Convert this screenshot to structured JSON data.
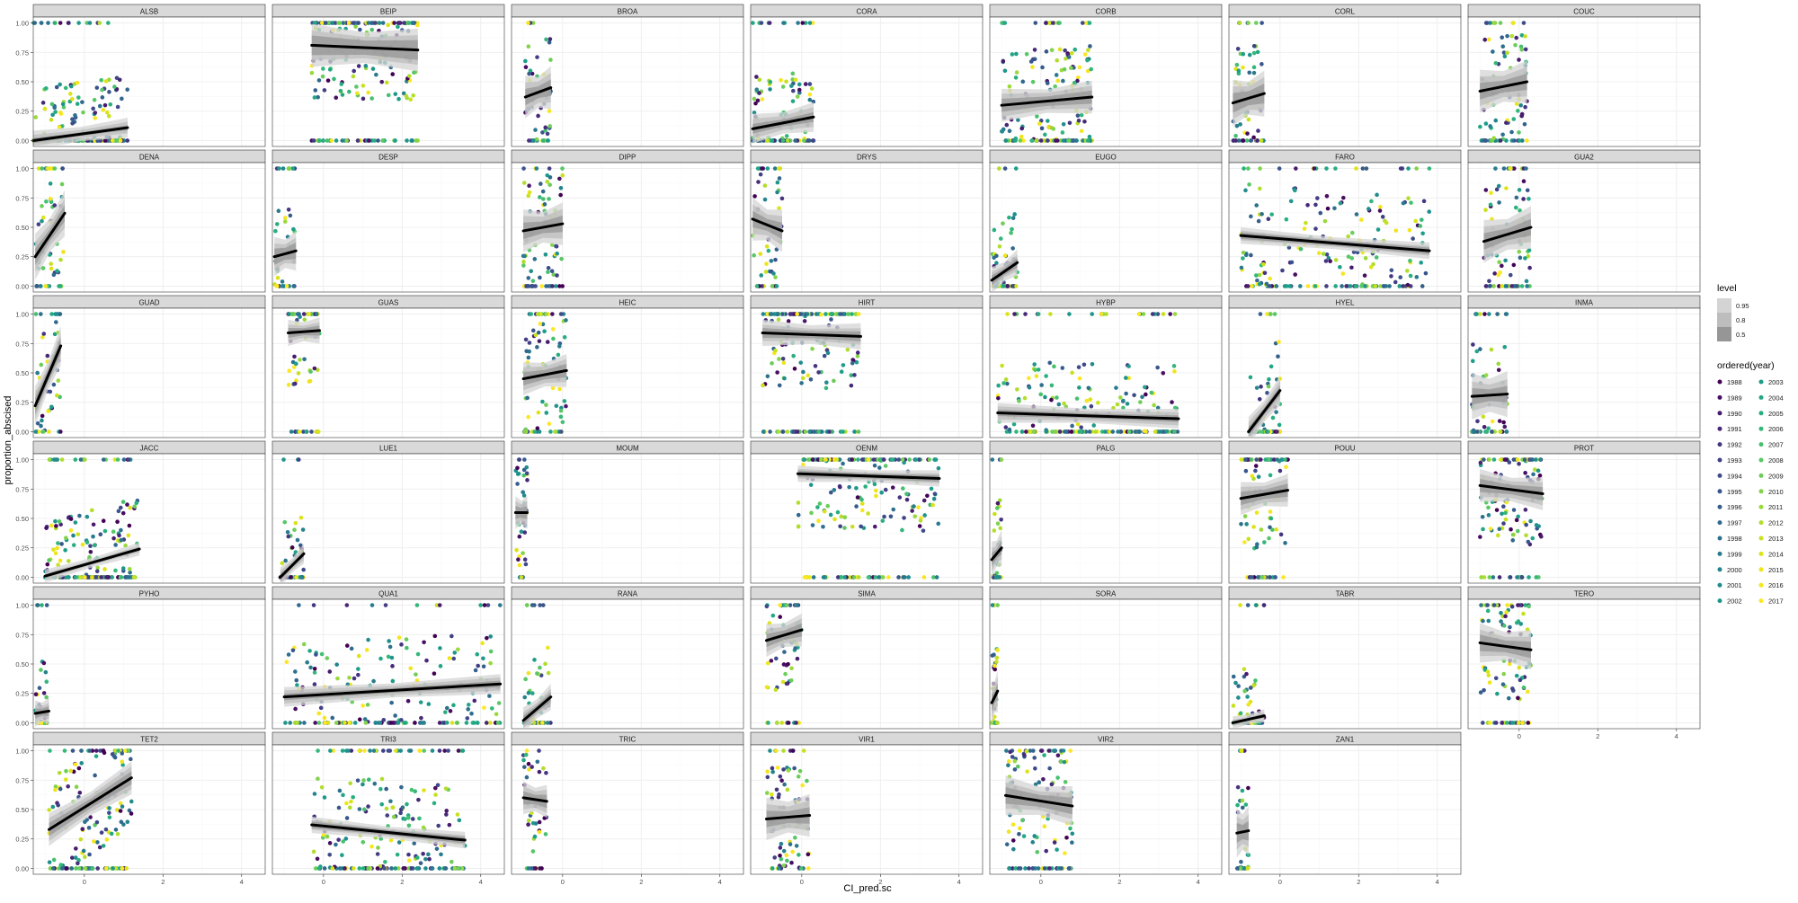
{
  "chart_data": {
    "type": "scatter",
    "facet_type": "facet_wrap",
    "xlabel": "CI_pred.sc",
    "ylabel": "proportion_abscised",
    "x_ticks": [
      0,
      2,
      4
    ],
    "y_ticks": [
      "0.00",
      "0.25",
      "0.50",
      "0.75",
      "1.00"
    ],
    "xlim": [
      -1.3,
      4.6
    ],
    "ylim": [
      -0.05,
      1.05
    ],
    "grid": true,
    "legend_position": "right",
    "colors": {
      "strip_bg": "#d9d9d9",
      "panel_border": "#333333",
      "grid_major": "#ebebeb",
      "grid_minor": "#f5f5f5",
      "fit_line": "#000000",
      "ribbon_95": "#d4d4d4",
      "ribbon_80": "#bdbdbd",
      "ribbon_50": "#969696"
    },
    "legend_level": {
      "title": "level",
      "entries": [
        "0.95",
        "0.8",
        "0.5"
      ],
      "colors": [
        "#d4d4d4",
        "#bdbdbd",
        "#969696"
      ]
    },
    "legend_year": {
      "title": "ordered(year)",
      "entries": [
        "1988",
        "1989",
        "1990",
        "1991",
        "1992",
        "1993",
        "1994",
        "1995",
        "1996",
        "1997",
        "1998",
        "1999",
        "2000",
        "2001",
        "2002",
        "2003",
        "2004",
        "2005",
        "2006",
        "2007",
        "2008",
        "2009",
        "2010",
        "2011",
        "2012",
        "2013",
        "2014",
        "2015",
        "2016",
        "2017"
      ],
      "colors": [
        "#440154",
        "#470E61",
        "#481B6D",
        "#472877",
        "#453581",
        "#423F85",
        "#3E4A89",
        "#39558C",
        "#355E8D",
        "#31688E",
        "#2D708E",
        "#297A8E",
        "#25838E",
        "#218C8D",
        "#1F958B",
        "#1E9D89",
        "#22A785",
        "#29AF7F",
        "#35B779",
        "#46C06F",
        "#58C765",
        "#6DCD59",
        "#83D34B",
        "#9AD93C",
        "#B2DD2D",
        "#C8E020",
        "#DDE318",
        "#EFE51C",
        "#F5E61F",
        "#FDE725"
      ]
    },
    "panels": [
      {
        "label": "ALSB",
        "x_range": [
          -1.3,
          1.1
        ],
        "fit": [
          0.0,
          0.11
        ],
        "band": [
          0.015,
          0.035,
          0.06
        ]
      },
      {
        "label": "BEIP",
        "x_range": [
          -0.3,
          2.4
        ],
        "fit": [
          0.81,
          0.77
        ],
        "band": [
          0.06,
          0.09,
          0.13
        ]
      },
      {
        "label": "BROA",
        "x_range": [
          -0.95,
          -0.3
        ],
        "fit": [
          0.37,
          0.45
        ],
        "band": [
          0.05,
          0.09,
          0.13
        ]
      },
      {
        "label": "CORA",
        "x_range": [
          -1.25,
          0.3
        ],
        "fit": [
          0.1,
          0.2
        ],
        "band": [
          0.03,
          0.06,
          0.09
        ]
      },
      {
        "label": "CORB",
        "x_range": [
          -1.0,
          1.3
        ],
        "fit": [
          0.3,
          0.37
        ],
        "band": [
          0.04,
          0.07,
          0.1
        ]
      },
      {
        "label": "CORL",
        "x_range": [
          -1.2,
          -0.4
        ],
        "fit": [
          0.32,
          0.4
        ],
        "band": [
          0.06,
          0.1,
          0.14
        ]
      },
      {
        "label": "COUC",
        "x_range": [
          -1.0,
          0.2
        ],
        "fit": [
          0.42,
          0.5
        ],
        "band": [
          0.05,
          0.09,
          0.13
        ]
      },
      {
        "label": "DENA",
        "x_range": [
          -1.25,
          -0.5
        ],
        "fit": [
          0.25,
          0.62
        ],
        "band": [
          0.05,
          0.09,
          0.14
        ]
      },
      {
        "label": "DESP",
        "x_range": [
          -1.25,
          -0.7
        ],
        "fit": [
          0.25,
          0.3
        ],
        "band": [
          0.05,
          0.08,
          0.12
        ]
      },
      {
        "label": "DIPP",
        "x_range": [
          -1.0,
          0.0
        ],
        "fit": [
          0.47,
          0.53
        ],
        "band": [
          0.05,
          0.09,
          0.13
        ]
      },
      {
        "label": "DRYS",
        "x_range": [
          -1.25,
          -0.5
        ],
        "fit": [
          0.57,
          0.47
        ],
        "band": [
          0.05,
          0.09,
          0.13
        ]
      },
      {
        "label": "EUGO",
        "x_range": [
          -1.25,
          -0.6
        ],
        "fit": [
          0.05,
          0.2
        ],
        "band": [
          0.03,
          0.05,
          0.08
        ]
      },
      {
        "label": "FARO",
        "x_range": [
          -1.0,
          3.8
        ],
        "fit": [
          0.43,
          0.3
        ],
        "band": [
          0.02,
          0.03,
          0.05
        ]
      },
      {
        "label": "GUA2",
        "x_range": [
          -0.9,
          0.3
        ],
        "fit": [
          0.38,
          0.5
        ],
        "band": [
          0.05,
          0.09,
          0.13
        ]
      },
      {
        "label": "GUAD",
        "x_range": [
          -1.25,
          -0.6
        ],
        "fit": [
          0.22,
          0.73
        ],
        "band": [
          0.05,
          0.08,
          0.12
        ]
      },
      {
        "label": "GUAS",
        "x_range": [
          -0.9,
          -0.1
        ],
        "fit": [
          0.84,
          0.86
        ],
        "band": [
          0.03,
          0.05,
          0.08
        ]
      },
      {
        "label": "HEIC",
        "x_range": [
          -1.0,
          0.1
        ],
        "fit": [
          0.45,
          0.52
        ],
        "band": [
          0.04,
          0.07,
          0.1
        ]
      },
      {
        "label": "HIRT",
        "x_range": [
          -1.0,
          1.5
        ],
        "fit": [
          0.84,
          0.81
        ],
        "band": [
          0.03,
          0.05,
          0.08
        ]
      },
      {
        "label": "HYBP",
        "x_range": [
          -1.1,
          3.5
        ],
        "fit": [
          0.16,
          0.11
        ],
        "band": [
          0.02,
          0.04,
          0.06
        ]
      },
      {
        "label": "HYEL",
        "x_range": [
          -0.8,
          0.0
        ],
        "fit": [
          0.0,
          0.35
        ],
        "band": [
          0.03,
          0.06,
          0.09
        ]
      },
      {
        "label": "INMA",
        "x_range": [
          -1.2,
          -0.3
        ],
        "fit": [
          0.3,
          0.32
        ],
        "band": [
          0.05,
          0.09,
          0.14
        ]
      },
      {
        "label": "JACC",
        "x_range": [
          -1.0,
          1.4
        ],
        "fit": [
          0.01,
          0.24
        ],
        "band": [
          0.01,
          0.02,
          0.04
        ]
      },
      {
        "label": "LUE1",
        "x_range": [
          -1.1,
          -0.5
        ],
        "fit": [
          0.0,
          0.2
        ],
        "band": [
          0.02,
          0.04,
          0.06
        ]
      },
      {
        "label": "MOUM",
        "x_range": [
          -1.2,
          -0.9
        ],
        "fit": [
          0.55,
          0.55
        ],
        "band": [
          0.04,
          0.07,
          0.1
        ]
      },
      {
        "label": "OENM",
        "x_range": [
          -0.1,
          3.5
        ],
        "fit": [
          0.88,
          0.84
        ],
        "band": [
          0.02,
          0.03,
          0.05
        ]
      },
      {
        "label": "PALG",
        "x_range": [
          -1.25,
          -1.0
        ],
        "fit": [
          0.15,
          0.25
        ],
        "band": [
          0.04,
          0.07,
          0.11
        ]
      },
      {
        "label": "POUU",
        "x_range": [
          -1.0,
          0.2
        ],
        "fit": [
          0.67,
          0.74
        ],
        "band": [
          0.04,
          0.07,
          0.1
        ]
      },
      {
        "label": "PROT",
        "x_range": [
          -1.0,
          0.6
        ],
        "fit": [
          0.78,
          0.71
        ],
        "band": [
          0.04,
          0.07,
          0.1
        ]
      },
      {
        "label": "PYHO",
        "x_range": [
          -1.25,
          -0.9
        ],
        "fit": [
          0.08,
          0.1
        ],
        "band": [
          0.03,
          0.05,
          0.08
        ]
      },
      {
        "label": "QUA1",
        "x_range": [
          -1.0,
          4.5
        ],
        "fit": [
          0.22,
          0.33
        ],
        "band": [
          0.02,
          0.04,
          0.06
        ]
      },
      {
        "label": "RANA",
        "x_range": [
          -1.0,
          -0.3
        ],
        "fit": [
          0.02,
          0.22
        ],
        "band": [
          0.03,
          0.05,
          0.08
        ]
      },
      {
        "label": "SIMA",
        "x_range": [
          -0.9,
          0.0
        ],
        "fit": [
          0.7,
          0.79
        ],
        "band": [
          0.04,
          0.07,
          0.1
        ]
      },
      {
        "label": "SORA",
        "x_range": [
          -1.25,
          -1.1
        ],
        "fit": [
          0.17,
          0.27
        ],
        "band": [
          0.05,
          0.09,
          0.13
        ]
      },
      {
        "label": "TABR",
        "x_range": [
          -1.2,
          -0.4
        ],
        "fit": [
          0.0,
          0.06
        ],
        "band": [
          0.01,
          0.02,
          0.04
        ]
      },
      {
        "label": "TERO",
        "x_range": [
          -1.0,
          0.3
        ],
        "fit": [
          0.68,
          0.62
        ],
        "band": [
          0.05,
          0.08,
          0.12
        ]
      },
      {
        "label": "TET2",
        "x_range": [
          -0.9,
          1.2
        ],
        "fit": [
          0.33,
          0.77
        ],
        "band": [
          0.04,
          0.07,
          0.1
        ]
      },
      {
        "label": "TRI3",
        "x_range": [
          -0.3,
          3.6
        ],
        "fit": [
          0.37,
          0.24
        ],
        "band": [
          0.02,
          0.03,
          0.05
        ]
      },
      {
        "label": "TRIC",
        "x_range": [
          -1.0,
          -0.4
        ],
        "fit": [
          0.6,
          0.57
        ],
        "band": [
          0.04,
          0.07,
          0.1
        ]
      },
      {
        "label": "VIR1",
        "x_range": [
          -0.9,
          0.2
        ],
        "fit": [
          0.42,
          0.45
        ],
        "band": [
          0.05,
          0.09,
          0.13
        ]
      },
      {
        "label": "VIR2",
        "x_range": [
          -0.9,
          0.8
        ],
        "fit": [
          0.62,
          0.53
        ],
        "band": [
          0.05,
          0.08,
          0.12
        ]
      },
      {
        "label": "ZAN1",
        "x_range": [
          -1.1,
          -0.8
        ],
        "fit": [
          0.3,
          0.32
        ],
        "band": [
          0.06,
          0.1,
          0.15
        ]
      }
    ]
  }
}
